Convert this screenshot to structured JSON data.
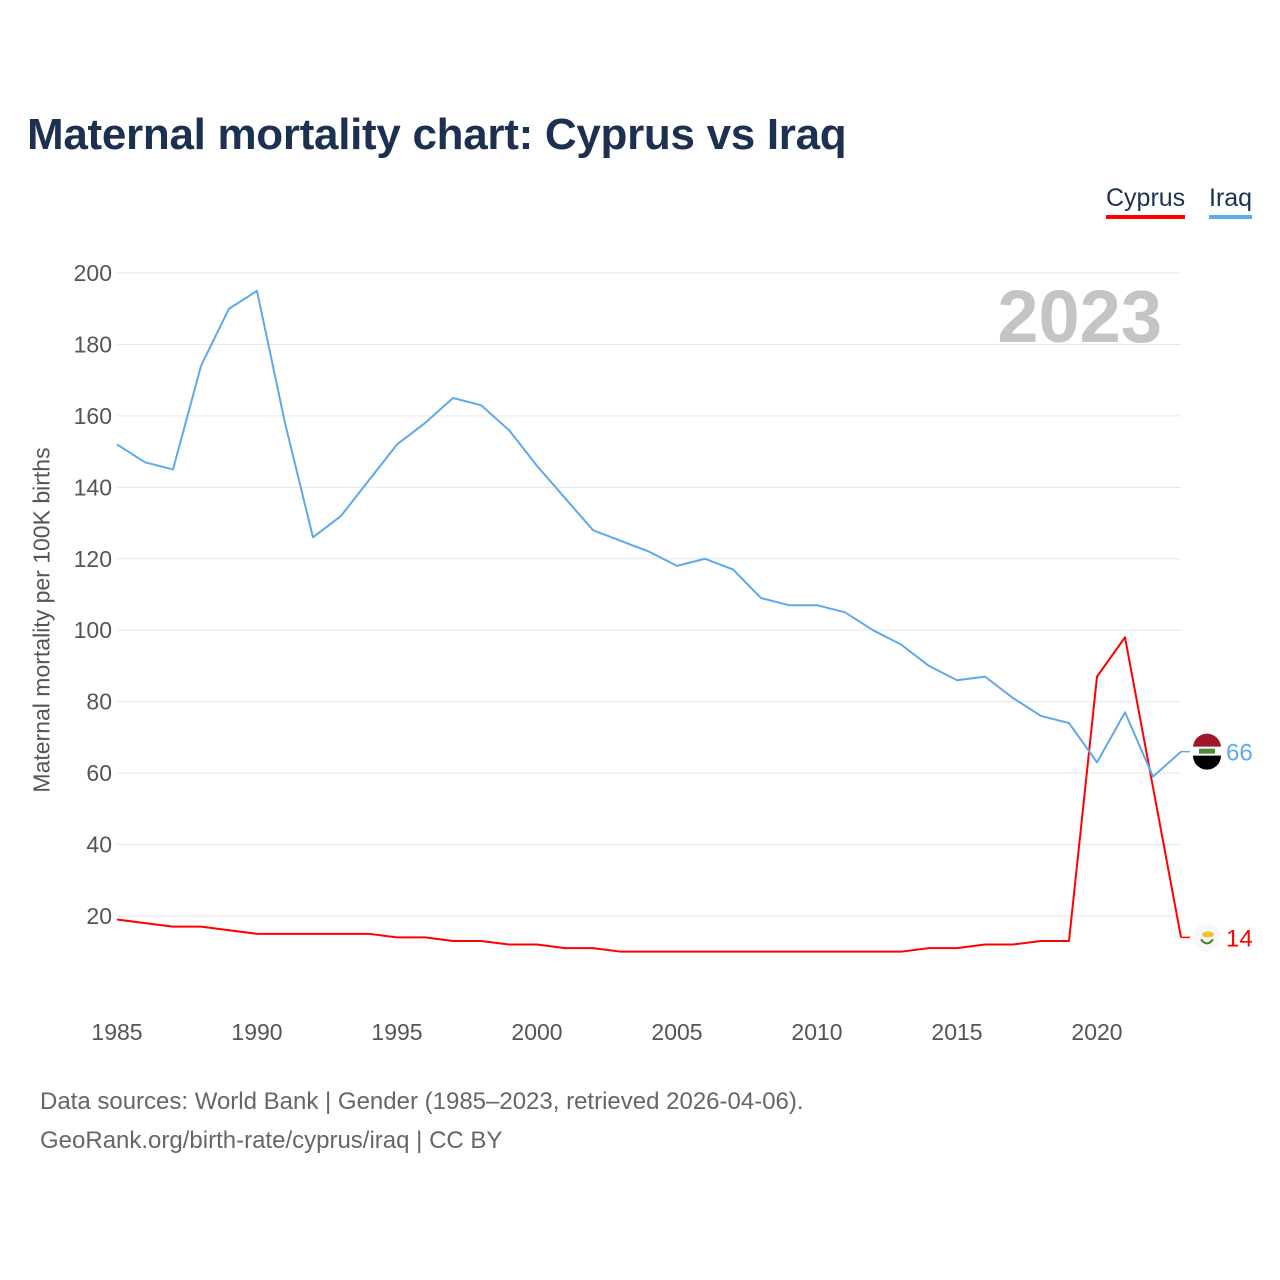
{
  "chart_data": {
    "type": "line",
    "title": "Maternal mortality chart: Cyprus vs Iraq",
    "ylabel": "Maternal mortality per 100K births",
    "xlabel": "",
    "current_year": "2023",
    "ylim": [
      0,
      200
    ],
    "xlim": [
      1985,
      2023
    ],
    "yticks": [
      20,
      40,
      60,
      80,
      100,
      120,
      140,
      160,
      180,
      200
    ],
    "xticks": [
      1985,
      1990,
      1995,
      2000,
      2005,
      2010,
      2015,
      2020
    ],
    "grid": true,
    "legend_placement": "top-right",
    "x": [
      1985,
      1986,
      1987,
      1988,
      1989,
      1990,
      1991,
      1992,
      1993,
      1994,
      1995,
      1996,
      1997,
      1998,
      1999,
      2000,
      2001,
      2002,
      2003,
      2004,
      2005,
      2006,
      2007,
      2008,
      2009,
      2010,
      2011,
      2012,
      2013,
      2014,
      2015,
      2016,
      2017,
      2018,
      2019,
      2020,
      2021,
      2022,
      2023
    ],
    "series": [
      {
        "name": "Cyprus",
        "color": "#ff0000",
        "end_label": "14",
        "values": [
          19,
          18,
          17,
          17,
          16,
          15,
          15,
          15,
          15,
          15,
          14,
          14,
          13,
          13,
          12,
          12,
          11,
          11,
          10,
          10,
          10,
          10,
          10,
          10,
          10,
          10,
          10,
          10,
          10,
          11,
          11,
          12,
          12,
          13,
          13,
          87,
          98,
          56,
          14
        ]
      },
      {
        "name": "Iraq",
        "color": "#5ea9ec",
        "end_label": "66",
        "values": [
          152,
          147,
          145,
          174,
          190,
          195,
          158,
          126,
          132,
          142,
          152,
          158,
          165,
          163,
          156,
          146,
          137,
          128,
          125,
          122,
          118,
          120,
          117,
          109,
          107,
          107,
          105,
          100,
          96,
          90,
          86,
          87,
          81,
          76,
          74,
          63,
          77,
          59,
          66
        ]
      }
    ]
  },
  "footer": {
    "line1": "Data sources: World Bank | Gender (1985–2023, retrieved 2026-04-06).",
    "line2": "GeoRank.org/birth-rate/cyprus/iraq | CC BY"
  }
}
